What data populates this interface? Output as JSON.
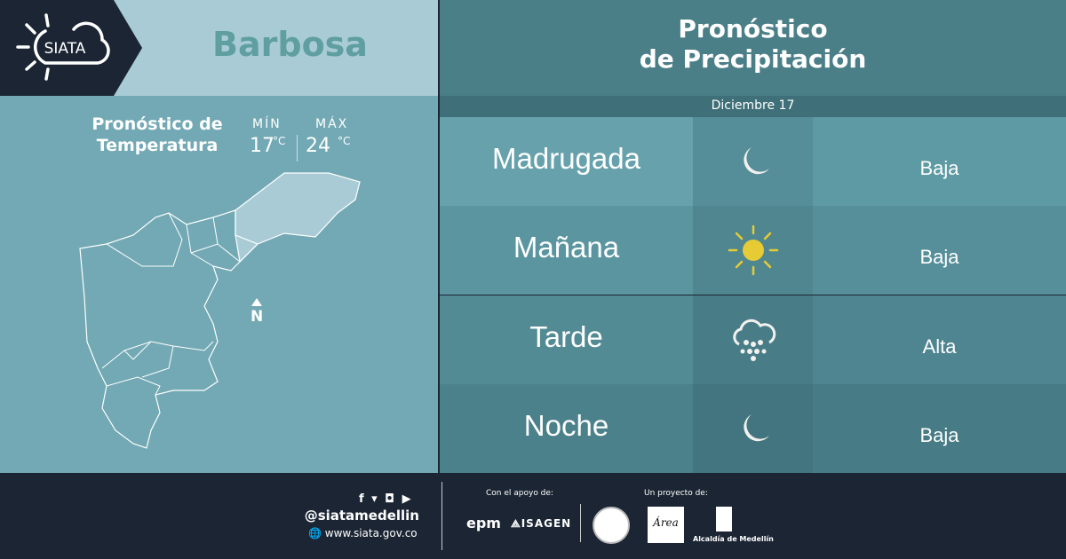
{
  "brand": {
    "logo_text": "SIATA"
  },
  "city": "Barbosa",
  "temperature": {
    "label_line1": "Pronóstico de",
    "label_line2": "Temperatura",
    "min_label": "MÍN",
    "min_value": "17",
    "max_label": "MÁX",
    "max_value": "24",
    "unit": "°C"
  },
  "map": {
    "north_label": "N"
  },
  "precipitation": {
    "title_line1": "Pronóstico",
    "title_line2": "de Precipitación",
    "date": "Diciembre 17",
    "rows": [
      {
        "period": "Madrugada",
        "icon": "moon-icon",
        "level": "Baja"
      },
      {
        "period": "Mañana",
        "icon": "sun-icon",
        "level": "Baja"
      },
      {
        "period": "Tarde",
        "icon": "rain-cloud-icon",
        "level": "Alta"
      },
      {
        "period": "Noche",
        "icon": "moon-icon",
        "level": "Baja"
      }
    ]
  },
  "footer": {
    "handle": "@siatamedellin",
    "website": "www.siata.gov.co",
    "support_label": "Con el apoyo de:",
    "project_label": "Un proyecto de:",
    "epm": "epm",
    "isagen": "ISAGEN",
    "area_label": "Área",
    "alcaldia_label": "Alcaldía de Medellín"
  },
  "colors": {
    "dark": "#1b2533",
    "light_band": "#a8cbd6",
    "panel": "#72a9b4",
    "sun": "#e6cb35"
  }
}
